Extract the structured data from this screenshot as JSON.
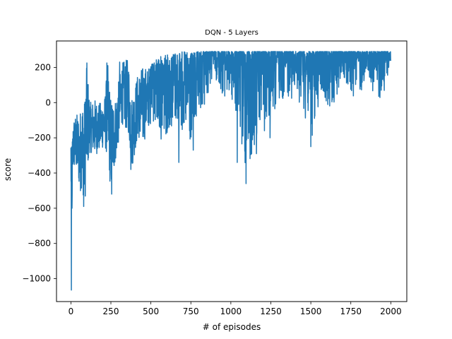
{
  "chart_data": {
    "type": "line",
    "title": "DQN - 5 Layers",
    "xlabel": "# of episodes",
    "ylabel": "score",
    "xlim": [
      -90,
      2100
    ],
    "ylim": [
      -1130,
      350
    ],
    "xticks": [
      0,
      250,
      500,
      750,
      1000,
      1250,
      1500,
      1750,
      2000
    ],
    "xtick_labels": [
      "0",
      "250",
      "500",
      "750",
      "1000",
      "1250",
      "1500",
      "1750",
      "2000"
    ],
    "yticks": [
      200,
      0,
      -200,
      -400,
      -600,
      -800,
      -1000
    ],
    "ytick_labels": [
      "200",
      "0",
      "−200",
      "−400",
      "−600",
      "−800",
      "−1000"
    ],
    "grid": false,
    "series": [
      {
        "color": "#1f77b4",
        "x_range": [
          0,
          2000
        ],
        "envelope": [
          {
            "x": 0,
            "lo": -260,
            "hi": -255
          },
          {
            "x": 3,
            "lo": -1065,
            "hi": -250
          },
          {
            "x": 6,
            "lo": -600,
            "hi": -250
          },
          {
            "x": 10,
            "lo": -580,
            "hi": -150
          },
          {
            "x": 15,
            "lo": -400,
            "hi": -80
          },
          {
            "x": 25,
            "lo": -380,
            "hi": -70
          },
          {
            "x": 40,
            "lo": -420,
            "hi": -60
          },
          {
            "x": 55,
            "lo": -510,
            "hi": -60
          },
          {
            "x": 70,
            "lo": -480,
            "hi": 20
          },
          {
            "x": 85,
            "lo": -600,
            "hi": 20
          },
          {
            "x": 100,
            "lo": -420,
            "hi": 225
          },
          {
            "x": 120,
            "lo": -280,
            "hi": 0
          },
          {
            "x": 150,
            "lo": -300,
            "hi": 20
          },
          {
            "x": 180,
            "lo": -280,
            "hi": 0
          },
          {
            "x": 210,
            "lo": -250,
            "hi": 20
          },
          {
            "x": 230,
            "lo": -320,
            "hi": 225
          },
          {
            "x": 250,
            "lo": -520,
            "hi": 30
          },
          {
            "x": 280,
            "lo": -330,
            "hi": 30
          },
          {
            "x": 320,
            "lo": -120,
            "hi": 230
          },
          {
            "x": 360,
            "lo": -180,
            "hi": 250
          },
          {
            "x": 380,
            "lo": -380,
            "hi": 40
          },
          {
            "x": 420,
            "lo": -200,
            "hi": 170
          },
          {
            "x": 450,
            "lo": -250,
            "hi": 210
          },
          {
            "x": 480,
            "lo": -150,
            "hi": 200
          },
          {
            "x": 510,
            "lo": -100,
            "hi": 220
          },
          {
            "x": 550,
            "lo": -220,
            "hi": 260
          },
          {
            "x": 600,
            "lo": -180,
            "hi": 270
          },
          {
            "x": 650,
            "lo": -120,
            "hi": 280
          },
          {
            "x": 700,
            "lo": -180,
            "hi": 290
          },
          {
            "x": 750,
            "lo": -270,
            "hi": 280
          },
          {
            "x": 800,
            "lo": -100,
            "hi": 290
          },
          {
            "x": 850,
            "lo": 0,
            "hi": 290
          },
          {
            "x": 900,
            "lo": 150,
            "hi": 290
          },
          {
            "x": 950,
            "lo": 20,
            "hi": 290
          },
          {
            "x": 1000,
            "lo": 0,
            "hi": 290
          },
          {
            "x": 1050,
            "lo": -200,
            "hi": 290
          },
          {
            "x": 1100,
            "lo": -460,
            "hi": 290
          },
          {
            "x": 1150,
            "lo": -290,
            "hi": 290
          },
          {
            "x": 1200,
            "lo": -100,
            "hi": 290
          },
          {
            "x": 1250,
            "lo": -200,
            "hi": 290
          },
          {
            "x": 1300,
            "lo": 10,
            "hi": 290
          },
          {
            "x": 1350,
            "lo": 30,
            "hi": 290
          },
          {
            "x": 1400,
            "lo": 20,
            "hi": 290
          },
          {
            "x": 1450,
            "lo": -20,
            "hi": 290
          },
          {
            "x": 1500,
            "lo": -250,
            "hi": 290
          },
          {
            "x": 1550,
            "lo": -20,
            "hi": 290
          },
          {
            "x": 1600,
            "lo": -20,
            "hi": 290
          },
          {
            "x": 1650,
            "lo": -30,
            "hi": 290
          },
          {
            "x": 1700,
            "lo": 150,
            "hi": 290
          },
          {
            "x": 1750,
            "lo": 30,
            "hi": 290
          },
          {
            "x": 1800,
            "lo": 20,
            "hi": 290
          },
          {
            "x": 1850,
            "lo": 130,
            "hi": 290
          },
          {
            "x": 1900,
            "lo": 20,
            "hi": 290
          },
          {
            "x": 1950,
            "lo": 30,
            "hi": 290
          },
          {
            "x": 2000,
            "lo": 210,
            "hi": 290
          }
        ],
        "dips": [
          {
            "x": 3,
            "y": -1065
          },
          {
            "x": 7,
            "y": -600
          },
          {
            "x": 60,
            "y": -500
          },
          {
            "x": 80,
            "y": -590
          },
          {
            "x": 100,
            "y": 225
          },
          {
            "x": 225,
            "y": 225
          },
          {
            "x": 255,
            "y": -520
          },
          {
            "x": 305,
            "y": 230
          },
          {
            "x": 375,
            "y": -380
          },
          {
            "x": 675,
            "y": -340
          },
          {
            "x": 765,
            "y": -270
          },
          {
            "x": 1040,
            "y": -340
          },
          {
            "x": 1075,
            "y": -190
          },
          {
            "x": 1095,
            "y": -460
          },
          {
            "x": 1130,
            "y": -290
          },
          {
            "x": 1160,
            "y": -290
          },
          {
            "x": 1210,
            "y": -160
          },
          {
            "x": 1245,
            "y": -200
          },
          {
            "x": 1500,
            "y": -250
          }
        ]
      }
    ]
  }
}
